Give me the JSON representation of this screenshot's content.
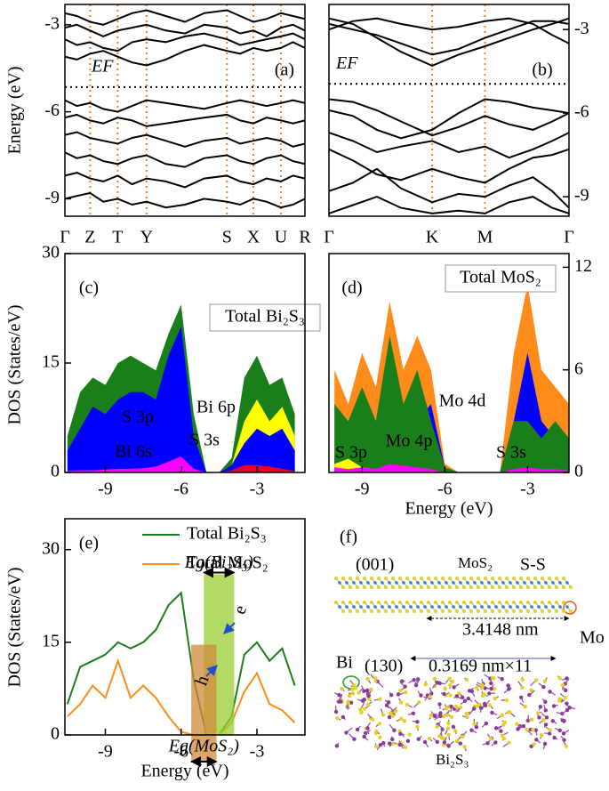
{
  "chart_data": [
    {
      "type": "band_structure",
      "ylabel": "Energy (eV)",
      "panel_label": "(a)",
      "color": "#000000",
      "kpoint_line_color": "#f08020",
      "fermi_level": {
        "label": "EF",
        "value": -5.15
      },
      "xlim": [
        0,
        1
      ],
      "xticks": [
        {
          "value": 0,
          "label": "Γ"
        },
        {
          "value": 0.105,
          "label": "Z"
        },
        {
          "value": 0.22,
          "label": "T"
        },
        {
          "value": 0.34,
          "label": "Y"
        },
        {
          "value": 0.675,
          "label": "S"
        },
        {
          "value": 0.785,
          "label": "X"
        },
        {
          "value": 0.9,
          "label": "U"
        },
        {
          "value": 1,
          "label": "R"
        }
      ],
      "ylim": [
        -9.6,
        -2.3
      ],
      "yticks": [
        -3,
        -6,
        -9
      ],
      "yaxis_side": "left",
      "x": [
        0,
        0.05,
        0.105,
        0.16,
        0.22,
        0.28,
        0.34,
        0.42,
        0.5,
        0.58,
        0.675,
        0.73,
        0.785,
        0.84,
        0.9,
        0.95,
        1
      ],
      "series": [
        {
          "values": [
            -2.6,
            -2.7,
            -2.9,
            -3.0,
            -2.8,
            -2.6,
            -2.5,
            -2.7,
            -2.9,
            -2.6,
            -2.5,
            -2.7,
            -2.9,
            -2.8,
            -2.6,
            -2.7,
            -2.8
          ]
        },
        {
          "values": [
            -3.1,
            -3.0,
            -3.2,
            -3.4,
            -3.2,
            -3.1,
            -3.0,
            -3.2,
            -3.3,
            -3.0,
            -3.1,
            -3.3,
            -3.2,
            -3.4,
            -3.1,
            -3.0,
            -3.2
          ]
        },
        {
          "values": [
            -3.5,
            -3.7,
            -3.6,
            -3.8,
            -3.9,
            -3.6,
            -3.5,
            -3.6,
            -3.4,
            -3.3,
            -3.5,
            -3.7,
            -3.6,
            -3.5,
            -3.4,
            -3.3,
            -3.5
          ]
        },
        {
          "values": [
            -4.1,
            -4.2,
            -4.0,
            -3.9,
            -4.1,
            -4.3,
            -4.4,
            -4.2,
            -3.9,
            -3.7,
            -3.9,
            -4.0,
            -3.8,
            -3.9,
            -3.8,
            -3.6,
            -3.8
          ]
        },
        {
          "values": [
            -5.6,
            -5.8,
            -5.7,
            -5.9,
            -6.0,
            -5.8,
            -5.6,
            -5.7,
            -5.8,
            -5.9,
            -5.7,
            -5.6,
            -5.7,
            -5.8,
            -5.7,
            -5.6,
            -5.7
          ]
        },
        {
          "values": [
            -6.2,
            -6.1,
            -6.3,
            -6.4,
            -6.2,
            -6.3,
            -6.5,
            -6.4,
            -6.3,
            -6.2,
            -6.1,
            -6.3,
            -6.4,
            -6.2,
            -6.3,
            -6.4,
            -6.3
          ]
        },
        {
          "values": [
            -6.8,
            -6.7,
            -6.9,
            -7.0,
            -7.1,
            -6.9,
            -6.8,
            -7.0,
            -7.2,
            -7.0,
            -6.9,
            -7.1,
            -7.0,
            -6.9,
            -7.0,
            -7.2,
            -7.1
          ]
        },
        {
          "values": [
            -7.4,
            -7.6,
            -7.5,
            -7.7,
            -7.8,
            -7.6,
            -7.5,
            -7.8,
            -7.9,
            -7.6,
            -7.5,
            -7.7,
            -7.8,
            -7.6,
            -7.5,
            -7.7,
            -7.8
          ]
        },
        {
          "values": [
            -8.2,
            -8.1,
            -8.3,
            -8.4,
            -8.2,
            -8.5,
            -8.3,
            -8.4,
            -8.6,
            -8.3,
            -8.2,
            -8.4,
            -8.5,
            -8.3,
            -8.4,
            -8.2,
            -8.3
          ]
        },
        {
          "values": [
            -9.0,
            -8.9,
            -8.8,
            -9.1,
            -9.0,
            -9.2,
            -9.1,
            -9.3,
            -9.2,
            -9.0,
            -9.1,
            -9.2,
            -9.0,
            -9.1,
            -9.3,
            -9.2,
            -9.0
          ]
        }
      ]
    },
    {
      "type": "band_structure",
      "panel_label": "(b)",
      "color": "#000000",
      "kpoint_line_color": "#f08020",
      "fermi_level": {
        "label": "EF",
        "value": -4.95
      },
      "xlim": [
        0,
        1
      ],
      "xticks": [
        {
          "value": 0,
          "label": "Γ"
        },
        {
          "value": 0.43,
          "label": "K"
        },
        {
          "value": 0.65,
          "label": "M"
        },
        {
          "value": 1,
          "label": "Γ"
        }
      ],
      "ylim": [
        -9.7,
        -2.1
      ],
      "yticks": [
        -3,
        -6,
        -9
      ],
      "yaxis_side": "right",
      "x": [
        0,
        0.1,
        0.2,
        0.3,
        0.43,
        0.54,
        0.65,
        0.75,
        0.85,
        0.93,
        1
      ],
      "series": [
        {
          "values": [
            -2.6,
            -2.8,
            -3.3,
            -3.8,
            -4.3,
            -3.9,
            -3.6,
            -3.3,
            -3.0,
            -2.8,
            -2.6
          ]
        },
        {
          "values": [
            -2.8,
            -3.0,
            -3.2,
            -3.5,
            -3.9,
            -3.7,
            -3.3,
            -3.0,
            -2.7,
            -2.7,
            -2.8
          ]
        },
        {
          "values": [
            -3.0,
            -2.7,
            -2.6,
            -2.8,
            -3.0,
            -2.9,
            -2.7,
            -2.6,
            -2.8,
            -3.2,
            -3.5
          ]
        },
        {
          "values": [
            -5.9,
            -6.1,
            -6.6,
            -6.9,
            -6.6,
            -6.0,
            -5.5,
            -5.6,
            -5.8,
            -5.9,
            -6.0
          ]
        },
        {
          "values": [
            -5.5,
            -5.6,
            -5.9,
            -6.3,
            -6.8,
            -6.5,
            -6.1,
            -6.4,
            -6.6,
            -6.3,
            -6.0
          ]
        },
        {
          "values": [
            -6.7,
            -7.0,
            -7.4,
            -7.2,
            -7.0,
            -7.4,
            -7.2,
            -7.6,
            -7.3,
            -7.0,
            -6.7
          ]
        },
        {
          "values": [
            -7.3,
            -7.7,
            -8.2,
            -8.4,
            -8.0,
            -8.3,
            -8.5,
            -8.0,
            -7.6,
            -7.5,
            -7.3
          ]
        },
        {
          "values": [
            -8.8,
            -8.5,
            -8.0,
            -8.7,
            -9.2,
            -8.9,
            -9.0,
            -8.6,
            -8.3,
            -8.8,
            -9.4
          ]
        },
        {
          "values": [
            -9.6,
            -9.3,
            -9.0,
            -9.4,
            -9.6,
            -9.5,
            -9.6,
            -9.2,
            -9.0,
            -9.4,
            -9.6
          ]
        }
      ]
    },
    {
      "type": "dos_area",
      "ylabel": "DOS (States/eV)",
      "panel_label": "(c)",
      "xlim": [
        -10.6,
        -1.1
      ],
      "xticks": [
        -9,
        -6,
        -3
      ],
      "ylim": [
        0,
        30
      ],
      "yticks": [
        0,
        15,
        30
      ],
      "yaxis_side": "left",
      "x": [
        -10.5,
        -10,
        -9.5,
        -9,
        -8.5,
        -8,
        -7.5,
        -7,
        -6.5,
        -6,
        -5.5,
        -5,
        -4.5,
        -4,
        -3.5,
        -3,
        -2.5,
        -2,
        -1.5
      ],
      "series": [
        {
          "name": "Total Bi₂S₃",
          "color": "#1a7f1a",
          "values": [
            5,
            11,
            13,
            12,
            15,
            16,
            15,
            14,
            19,
            23,
            8,
            0,
            0,
            2,
            13,
            16,
            12,
            13,
            8
          ]
        },
        {
          "name": "Bi 6p",
          "color": "#ffff00",
          "values": [
            0.5,
            0.5,
            0.5,
            0.5,
            0.5,
            0.5,
            0.5,
            0.5,
            0.5,
            0.5,
            0.3,
            0,
            0,
            1,
            7,
            10,
            7,
            9,
            5
          ]
        },
        {
          "name": "S 3p",
          "color": "#0000ff",
          "values": [
            3,
            6,
            9,
            8,
            10,
            11,
            11,
            10,
            16,
            20,
            5,
            0,
            0,
            1,
            4,
            6,
            5,
            6,
            3
          ]
        },
        {
          "name": "S 3s",
          "color": "#e8002a",
          "values": [
            0,
            0,
            0,
            0,
            0,
            0,
            0,
            0,
            0,
            0,
            0,
            0,
            0,
            0.3,
            1,
            1,
            0.8,
            0.5,
            0.2
          ]
        },
        {
          "name": "Bi 6s",
          "color": "#ff00ff",
          "values": [
            0.2,
            0.3,
            0.3,
            0.4,
            0.5,
            0.5,
            0.6,
            0.8,
            1.5,
            2.2,
            0.5,
            0,
            0,
            0,
            0,
            0,
            0,
            0,
            0
          ]
        }
      ]
    },
    {
      "type": "dos_area",
      "xlabel": "Energy (eV)",
      "panel_label": "(d)",
      "xlim": [
        -10.2,
        -1.5
      ],
      "xticks": [
        -9,
        -6,
        -3
      ],
      "ylim": [
        0,
        12.8
      ],
      "yticks": [
        0,
        6,
        12
      ],
      "yaxis_side": "right",
      "x": [
        -10,
        -9.5,
        -9,
        -8.5,
        -8,
        -7.5,
        -7,
        -6.5,
        -6,
        -5.5,
        -5,
        -4.5,
        -4,
        -3.5,
        -3,
        -2.5,
        -2,
        -1.5
      ],
      "series": [
        {
          "name": "Total MoS₂",
          "color": "#ff8c1a",
          "values": [
            6,
            4,
            7,
            5,
            10,
            6,
            8,
            6,
            0.5,
            0,
            0,
            0,
            0,
            7,
            11,
            6,
            5,
            4
          ]
        },
        {
          "name": "Mo 4d",
          "color": "#0000ff",
          "values": [
            1,
            1,
            2,
            1,
            3,
            2,
            3,
            4,
            0.3,
            0,
            0,
            0,
            0,
            3,
            7,
            3,
            2,
            1.5
          ]
        },
        {
          "name": "S 3p",
          "color": "#1a7f1a",
          "values": [
            4,
            3,
            5,
            3,
            8,
            4,
            6,
            3,
            0.3,
            0,
            0,
            0,
            0,
            3,
            3,
            2,
            3,
            2
          ]
        },
        {
          "name": "S 3s",
          "color": "#ffff00",
          "values": [
            0.5,
            0.8,
            0.3,
            0.2,
            0.3,
            0.2,
            0.2,
            0.1,
            0,
            0,
            0,
            0,
            0,
            0.1,
            0.1,
            0.1,
            0.1,
            0.1
          ]
        },
        {
          "name": "Mo 4p",
          "color": "#ff00ff",
          "values": [
            0.3,
            0.2,
            0.3,
            0.2,
            0.5,
            0.4,
            0.3,
            0.2,
            0,
            0,
            0,
            0,
            0,
            0.2,
            0.3,
            0.2,
            0.2,
            0.1
          ]
        }
      ]
    },
    {
      "type": "line",
      "ylabel": "DOS (States/eV)",
      "xlabel": "Energy (eV)",
      "panel_label": "(e)",
      "xlim": [
        -10.6,
        -1.1
      ],
      "xticks": [
        -9,
        -6,
        -3
      ],
      "ylim": [
        0,
        35
      ],
      "yticks": [
        0,
        15,
        30
      ],
      "yaxis_side": "left",
      "x": [
        -10.5,
        -10,
        -9.5,
        -9,
        -8.5,
        -8,
        -7.5,
        -7,
        -6.5,
        -6,
        -5.5,
        -5,
        -4.5,
        -4,
        -3.5,
        -3,
        -2.5,
        -2,
        -1.5
      ],
      "series": [
        {
          "name": "Total Bi₂S₃",
          "color": "#1a7f1a",
          "values": [
            5,
            11,
            12,
            13,
            15,
            14,
            15,
            17,
            21,
            23,
            9,
            0,
            0,
            3,
            13,
            15,
            12,
            14,
            8
          ]
        },
        {
          "name": "Total MoS₂",
          "color": "#ff8c1a",
          "values": [
            3,
            5,
            8,
            6,
            12,
            6,
            8,
            6,
            3,
            0.5,
            0,
            0,
            0,
            2,
            7,
            10,
            5,
            4,
            2
          ]
        }
      ],
      "gaps": [
        {
          "label": "Eg(Bi₂S₃)",
          "color": "#9acd32",
          "x": [
            -5.1,
            -3.9
          ],
          "top": 26
        },
        {
          "label": "Eg(MoS₂)",
          "color": "#d08a3a",
          "x": [
            -5.6,
            -4.6
          ],
          "top": 14.6
        }
      ],
      "carriers": [
        "e",
        "h"
      ]
    }
  ],
  "structure_panel": {
    "panel_label": "(f)",
    "mos2_plane": "(001)",
    "mos2_name": "MoS₂",
    "ss_label": "S-S",
    "mos2_length": "3.4148 nm",
    "mo_label": "Mo",
    "bi_label": "Bi",
    "bi2s3_plane": "(130)",
    "bi2s3_length": "0.3169 nm×11",
    "bi2s3_name": "Bi₂S₃"
  }
}
